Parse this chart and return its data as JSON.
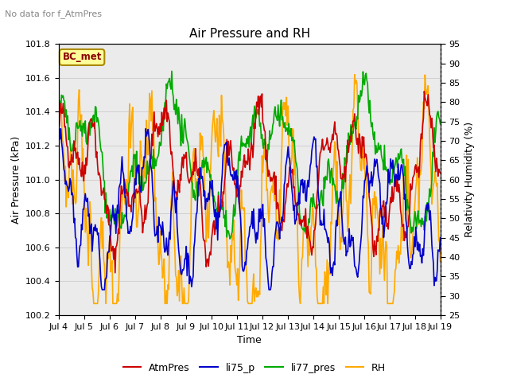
{
  "title": "Air Pressure and RH",
  "subtitle": "No data for f_AtmPres",
  "ylabel_left": "Air Pressure (kPa)",
  "ylabel_right": "Relativity Humidity (%)",
  "xlabel": "Time",
  "xlim_dates": [
    "Jul 4",
    "Jul 5",
    "Jul 6",
    "Jul 7",
    "Jul 8",
    "Jul 9",
    "Jul 10",
    "Jul 11",
    "Jul 12",
    "Jul 13",
    "Jul 14",
    "Jul 15",
    "Jul 16",
    "Jul 17",
    "Jul 18",
    "Jul 19"
  ],
  "ylim_left": [
    100.2,
    101.8
  ],
  "ylim_right": [
    25,
    95
  ],
  "yticks_left": [
    100.2,
    100.4,
    100.6,
    100.8,
    101.0,
    101.2,
    101.4,
    101.6,
    101.8
  ],
  "yticks_right": [
    25,
    30,
    35,
    40,
    45,
    50,
    55,
    60,
    65,
    70,
    75,
    80,
    85,
    90,
    95
  ],
  "colors": {
    "AtmPres": "#cc0000",
    "li75_p": "#0000cc",
    "li77_pres": "#00aa00",
    "RH": "#ffaa00"
  },
  "linewidths": {
    "AtmPres": 1.2,
    "li75_p": 1.2,
    "li77_pres": 1.2,
    "RH": 1.2
  },
  "legend_labels": [
    "AtmPres",
    "li75_p",
    "li77_pres",
    "RH"
  ],
  "bc_met_label": "BC_met",
  "bc_met_color": "#8b0000",
  "bc_met_bg": "#ffff99",
  "grid_color": "#d0d0d0",
  "plot_bg": "#ebebeb",
  "n_points": 500,
  "seed": 42
}
